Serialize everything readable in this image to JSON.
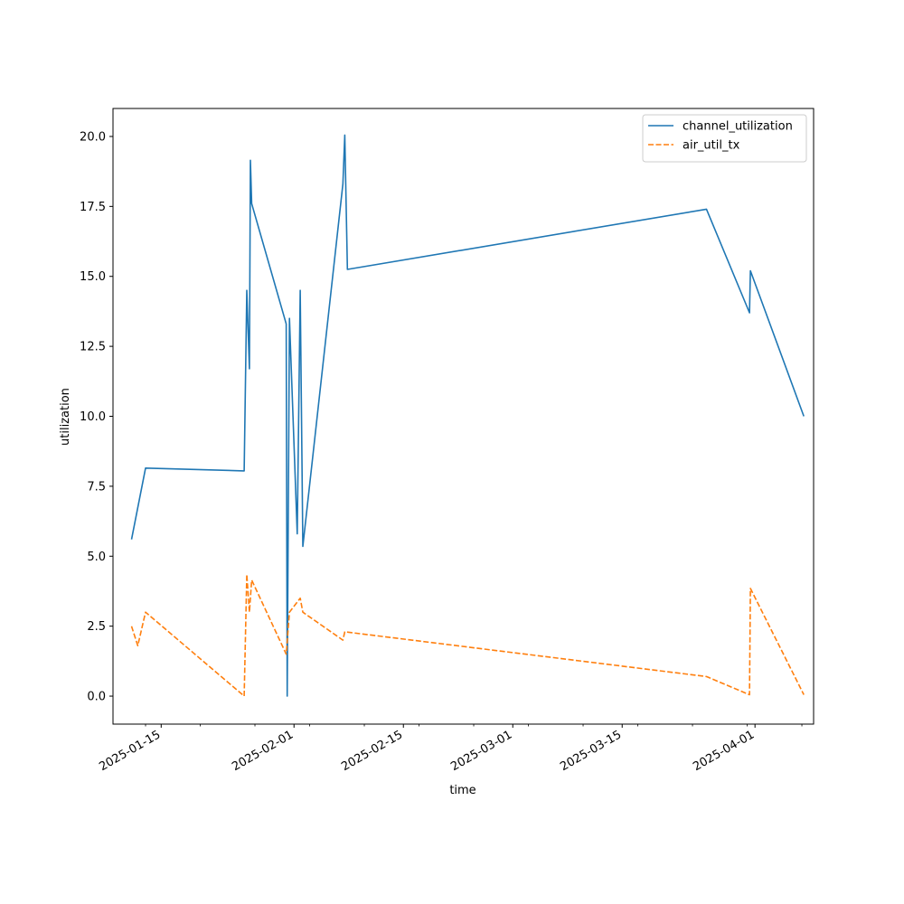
{
  "chart_data": {
    "type": "line",
    "title": "",
    "xlabel": "time",
    "ylabel": "utilization",
    "x_scale": "date",
    "xlim": [
      "2025-01-08T20:00",
      "2025-04-08T12:00"
    ],
    "ylim": [
      -1.0,
      21.0
    ],
    "x_ticks": [
      {
        "date": "2025-01-15",
        "label": "2025-01-15"
      },
      {
        "date": "2025-02-01",
        "label": "2025-02-01"
      },
      {
        "date": "2025-02-15",
        "label": "2025-02-15"
      },
      {
        "date": "2025-03-01",
        "label": "2025-03-01"
      },
      {
        "date": "2025-03-15",
        "label": "2025-03-15"
      },
      {
        "date": "2025-04-01",
        "label": "2025-04-01"
      }
    ],
    "y_ticks": [
      {
        "value": 0.0,
        "label": "0.0"
      },
      {
        "value": 2.5,
        "label": "2.5"
      },
      {
        "value": 5.0,
        "label": "5.0"
      },
      {
        "value": 7.5,
        "label": "7.5"
      },
      {
        "value": 10.0,
        "label": "10.0"
      },
      {
        "value": 12.5,
        "label": "12.5"
      },
      {
        "value": 15.0,
        "label": "15.0"
      },
      {
        "value": 17.5,
        "label": "17.5"
      },
      {
        "value": 20.0,
        "label": "20.0"
      }
    ],
    "grid": false,
    "legend_position": "top-right",
    "series": [
      {
        "name": "channel_utilization",
        "color": "#1f77b4",
        "style": "solid",
        "points": [
          {
            "x": "2025-01-11T05:00",
            "y": 5.6
          },
          {
            "x": "2025-01-13T00:00",
            "y": 8.15
          },
          {
            "x": "2025-01-25T15:00",
            "y": 8.05
          },
          {
            "x": "2025-01-25T23:00",
            "y": 14.5
          },
          {
            "x": "2025-01-26T07:00",
            "y": 11.7
          },
          {
            "x": "2025-01-26T10:00",
            "y": 19.15
          },
          {
            "x": "2025-01-26T14:00",
            "y": 17.6
          },
          {
            "x": "2025-01-31T00:00",
            "y": 13.3
          },
          {
            "x": "2025-01-31T03:00",
            "y": 0.0
          },
          {
            "x": "2025-01-31T10:00",
            "y": 13.5
          },
          {
            "x": "2025-02-01T10:00",
            "y": 5.8
          },
          {
            "x": "2025-02-01T19:00",
            "y": 14.5
          },
          {
            "x": "2025-02-02T03:00",
            "y": 5.35
          },
          {
            "x": "2025-02-07T06:00",
            "y": 18.3
          },
          {
            "x": "2025-02-07T12:00",
            "y": 20.05
          },
          {
            "x": "2025-02-07T20:00",
            "y": 15.25
          },
          {
            "x": "2025-03-25T19:00",
            "y": 17.4
          },
          {
            "x": "2025-03-31T07:00",
            "y": 13.7
          },
          {
            "x": "2025-03-31T10:00",
            "y": 15.2
          },
          {
            "x": "2025-04-07T06:00",
            "y": 10.0
          }
        ]
      },
      {
        "name": "air_util_tx",
        "color": "#ff7f0e",
        "style": "dashed",
        "points": [
          {
            "x": "2025-01-11T05:00",
            "y": 2.5
          },
          {
            "x": "2025-01-12T00:00",
            "y": 1.8
          },
          {
            "x": "2025-01-13T00:00",
            "y": 3.0
          },
          {
            "x": "2025-01-25T15:00",
            "y": 0.0
          },
          {
            "x": "2025-01-25T23:00",
            "y": 4.35
          },
          {
            "x": "2025-01-26T07:00",
            "y": 3.0
          },
          {
            "x": "2025-01-26T14:00",
            "y": 4.15
          },
          {
            "x": "2025-01-31T00:00",
            "y": 1.5
          },
          {
            "x": "2025-01-31T10:00",
            "y": 3.0
          },
          {
            "x": "2025-02-01T19:00",
            "y": 3.5
          },
          {
            "x": "2025-02-02T03:00",
            "y": 3.0
          },
          {
            "x": "2025-02-07T06:00",
            "y": 2.0
          },
          {
            "x": "2025-02-07T12:00",
            "y": 2.3
          },
          {
            "x": "2025-03-25T19:00",
            "y": 0.7
          },
          {
            "x": "2025-03-31T07:00",
            "y": 0.05
          },
          {
            "x": "2025-03-31T10:00",
            "y": 3.85
          },
          {
            "x": "2025-04-07T06:00",
            "y": 0.05
          }
        ]
      }
    ]
  }
}
